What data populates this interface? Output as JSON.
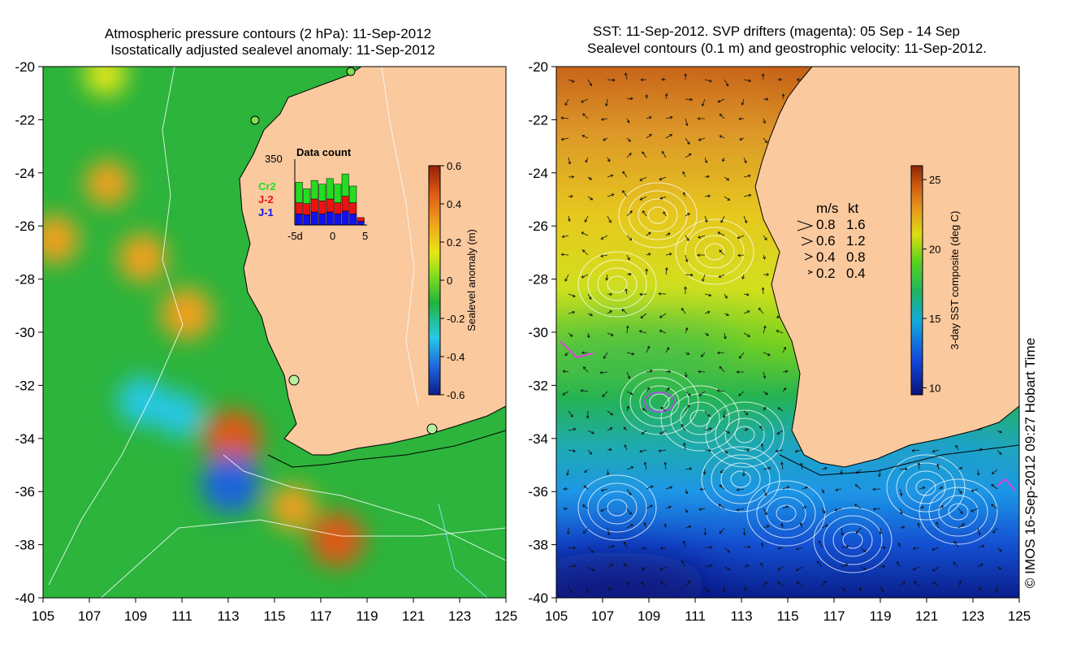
{
  "chart_data": [
    {
      "type": "heatmap",
      "title_lines": [
        "Atmospheric pressure contours (2 hPa): 11-Sep-2012",
        "Isostatically adjusted sealevel anomaly: 11-Sep-2012"
      ],
      "x_ticks": [
        "105",
        "107",
        "109",
        "111",
        "113",
        "115",
        "117",
        "119",
        "121",
        "123",
        "125"
      ],
      "y_ticks": [
        "-20",
        "-22",
        "-24",
        "-26",
        "-28",
        "-30",
        "-32",
        "-34",
        "-36",
        "-38",
        "-40"
      ],
      "xlim": [
        105,
        125
      ],
      "ylim": [
        -40,
        -20
      ],
      "colorbar": {
        "label": "Sealevel anomaly (m)",
        "ticks": [
          "0.6",
          "0.4",
          "0.2",
          "0",
          "-0.2",
          "-0.4",
          "-0.6"
        ],
        "range": [
          -0.6,
          0.6
        ]
      },
      "features": [
        {
          "lon": 113.2,
          "lat": -34.0,
          "value": 0.45
        },
        {
          "lon": 113.1,
          "lat": -35.7,
          "value": -0.45
        },
        {
          "lon": 117.7,
          "lat": -37.8,
          "value": 0.4
        },
        {
          "lon": 111.2,
          "lat": -29.3,
          "value": 0.35
        },
        {
          "lon": 107.8,
          "lat": -24.4,
          "value": 0.25
        },
        {
          "lon": 105.5,
          "lat": -26.5,
          "value": 0.3
        },
        {
          "lon": 109.3,
          "lat": -27.2,
          "value": 0.3
        },
        {
          "lon": 109.3,
          "lat": -32.6,
          "value": -0.3
        },
        {
          "lon": 110.9,
          "lat": -33.1,
          "value": -0.25
        },
        {
          "lon": 107.7,
          "lat": -20.3,
          "value": 0.2
        },
        {
          "lon": 115.8,
          "lat": -36.6,
          "value": 0.25
        }
      ],
      "inset": {
        "title": "Data count",
        "ymax_label": "350",
        "x_ticks": [
          "-5d",
          "0",
          "5"
        ],
        "legend": [
          "Cr2",
          "J-2",
          "J-1"
        ],
        "legend_colors": [
          "#22dd22",
          "#ee1111",
          "#1111ee"
        ],
        "days": [
          -4,
          -3,
          -2,
          -1,
          0,
          1,
          2,
          3,
          4
        ],
        "counts": {
          "J-1": [
            60,
            55,
            70,
            60,
            70,
            60,
            75,
            60,
            20
          ],
          "J-2": [
            60,
            60,
            70,
            70,
            70,
            60,
            80,
            60,
            20
          ],
          "Cr2": [
            110,
            80,
            100,
            90,
            110,
            100,
            120,
            90,
            0
          ]
        }
      }
    },
    {
      "type": "heatmap",
      "title_lines": [
        "SST: 11-Sep-2012. SVP drifters (magenta): 05 Sep - 14 Sep",
        "Sealevel contours (0.1 m) and geostrophic velocity: 11-Sep-2012."
      ],
      "x_ticks": [
        "105",
        "107",
        "109",
        "111",
        "113",
        "115",
        "117",
        "119",
        "121",
        "123",
        "125"
      ],
      "y_ticks": [
        "-20",
        "-22",
        "-24",
        "-26",
        "-28",
        "-30",
        "-32",
        "-34",
        "-36",
        "-38",
        "-40"
      ],
      "xlim": [
        105,
        125
      ],
      "ylim": [
        -40,
        -20
      ],
      "colorbar": {
        "label": "3-day SST composite (deg C)",
        "ticks": [
          "25",
          "20",
          "15",
          "10"
        ],
        "range": [
          9.5,
          26
        ]
      },
      "velocity_legend": {
        "header_ms": "m/s",
        "header_kt": "kt",
        "rows": [
          {
            "ms": "0.8",
            "kt": "1.6"
          },
          {
            "ms": "0.6",
            "kt": "1.2"
          },
          {
            "ms": "0.4",
            "kt": "0.8"
          },
          {
            "ms": "0.2",
            "kt": "0.4"
          }
        ]
      }
    }
  ],
  "credit": "© IMOS 16-Sep-2012 09:27 Hobart Time",
  "colors": {
    "land": "#fac99e",
    "sla_scale": [
      "#0a1e8c",
      "#1e64dc",
      "#28c8e6",
      "#20b43c",
      "#82dc1e",
      "#e6e614",
      "#f0a01e",
      "#dc5a14",
      "#961e0a"
    ],
    "sst_scale": [
      "#0a1478",
      "#1446dc",
      "#14aadc",
      "#20b464",
      "#5ad21e",
      "#dcdc14",
      "#e6a01e",
      "#d26414",
      "#8c2808"
    ]
  }
}
